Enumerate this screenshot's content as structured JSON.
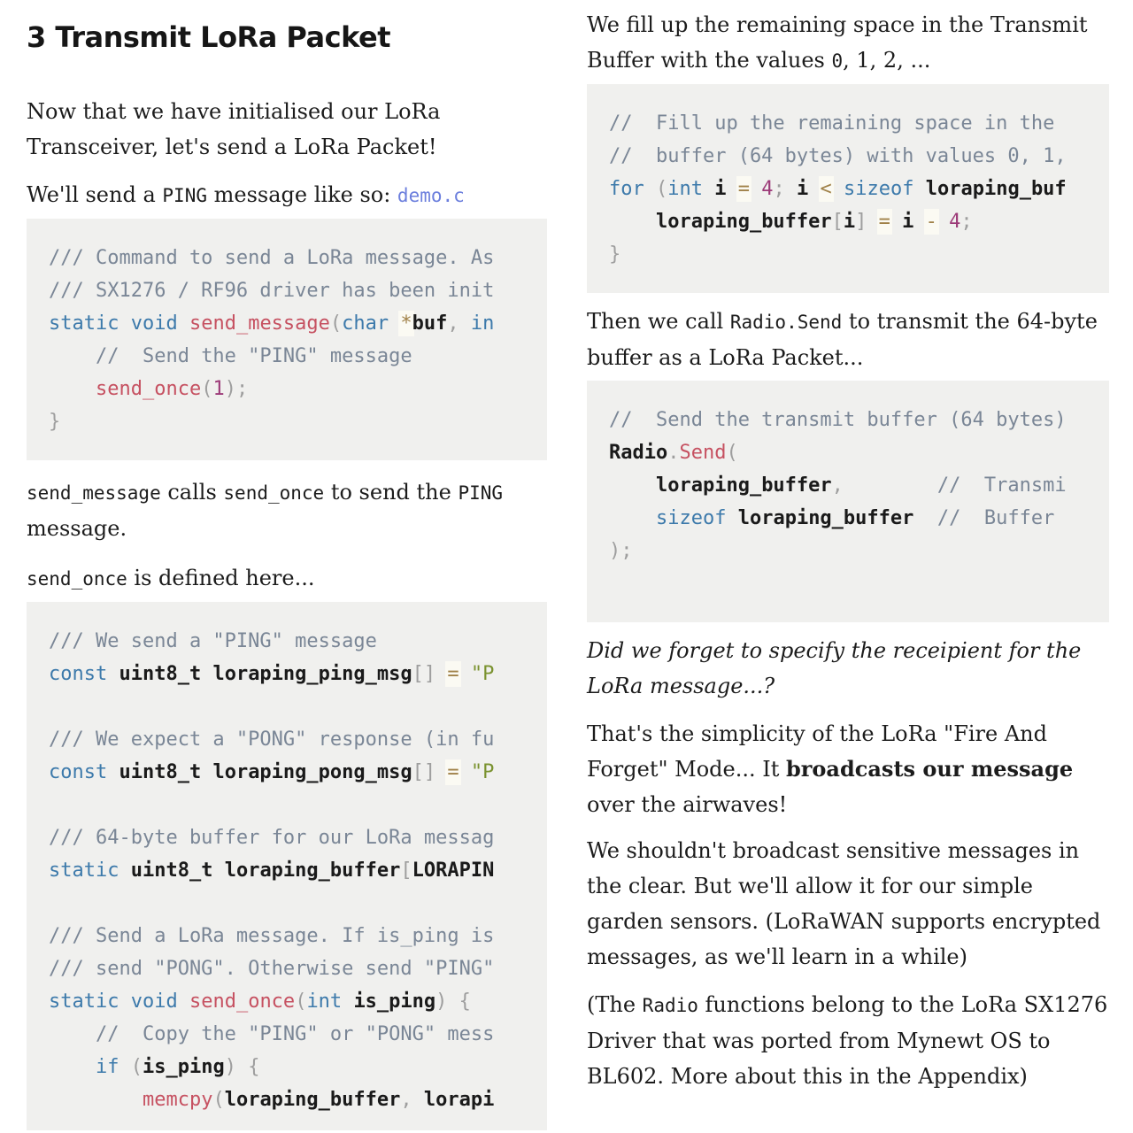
{
  "colors": {
    "text": "#1c1c1c",
    "code-bg": "#f0f0ee",
    "comment": "#7a8696",
    "keyword": "#3d7aab",
    "function": "#c65161",
    "string": "#7a922f",
    "operator": "#a08148",
    "operator-bg": "#fbfaf3",
    "number": "#9c3a78",
    "punct": "#9e9e9e",
    "ident": "#1a1a1a",
    "link": "#6c7fdd"
  },
  "left": {
    "heading": "3 Transmit LoRa Packet",
    "para_intro": [
      {
        "t": "Now that we have initialised our LoRa Transceiver, let's send a LoRa Packet!"
      }
    ],
    "para_send": [
      {
        "t": "We'll send a "
      },
      {
        "t": "PING",
        "s": "code"
      },
      {
        "t": " message like so: "
      },
      {
        "t": "demo.c",
        "s": "link"
      }
    ],
    "code_send_message": {
      "lines": [
        [
          [
            "cmt",
            "/// Command to send a LoRa message. As"
          ]
        ],
        [
          [
            "cmt",
            "/// SX1276 / RF96 driver has been init"
          ]
        ],
        [
          [
            "kw",
            "static"
          ],
          [
            "txt",
            " "
          ],
          [
            "kw",
            "void"
          ],
          [
            "txt",
            " "
          ],
          [
            "fn",
            "send_message"
          ],
          [
            "pun",
            "("
          ],
          [
            "kw",
            "char"
          ],
          [
            "txt",
            " "
          ],
          [
            "op",
            "*"
          ],
          [
            "id",
            "buf"
          ],
          [
            "pun",
            ","
          ],
          [
            "txt",
            " "
          ],
          [
            "kw",
            "in"
          ]
        ],
        [
          [
            "txt",
            "    "
          ],
          [
            "cmt",
            "//  Send the \"PING\" message"
          ]
        ],
        [
          [
            "txt",
            "    "
          ],
          [
            "fn",
            "send_once"
          ],
          [
            "pun",
            "("
          ],
          [
            "num",
            "1"
          ],
          [
            "pun",
            ");"
          ]
        ],
        [
          [
            "pun",
            "}"
          ]
        ]
      ]
    },
    "para_calls": [
      {
        "t": "send_message",
        "s": "code"
      },
      {
        "t": " calls "
      },
      {
        "t": "send_once",
        "s": "code"
      },
      {
        "t": " to send the "
      },
      {
        "t": "PING",
        "s": "code"
      },
      {
        "t": " message."
      }
    ],
    "para_defined": [
      {
        "t": "send_once",
        "s": "code"
      },
      {
        "t": " is defined here..."
      }
    ],
    "code_send_once": {
      "lines": [
        [
          [
            "cmt",
            "/// We send a \"PING\" message"
          ]
        ],
        [
          [
            "kw",
            "const"
          ],
          [
            "txt",
            " "
          ],
          [
            "id",
            "uint8_t"
          ],
          [
            "txt",
            " "
          ],
          [
            "id",
            "loraping_ping_msg"
          ],
          [
            "pun",
            "[]"
          ],
          [
            "txt",
            " "
          ],
          [
            "op",
            "="
          ],
          [
            "txt",
            " "
          ],
          [
            "str",
            "\"P"
          ]
        ],
        [],
        [
          [
            "cmt",
            "/// We expect a \"PONG\" response (in fu"
          ]
        ],
        [
          [
            "kw",
            "const"
          ],
          [
            "txt",
            " "
          ],
          [
            "id",
            "uint8_t"
          ],
          [
            "txt",
            " "
          ],
          [
            "id",
            "loraping_pong_msg"
          ],
          [
            "pun",
            "[]"
          ],
          [
            "txt",
            " "
          ],
          [
            "op",
            "="
          ],
          [
            "txt",
            " "
          ],
          [
            "str",
            "\"P"
          ]
        ],
        [],
        [
          [
            "cmt",
            "/// 64-byte buffer for our LoRa messag"
          ]
        ],
        [
          [
            "kw",
            "static"
          ],
          [
            "txt",
            " "
          ],
          [
            "id",
            "uint8_t"
          ],
          [
            "txt",
            " "
          ],
          [
            "id",
            "loraping_buffer"
          ],
          [
            "pun",
            "["
          ],
          [
            "id",
            "LORAPIN"
          ]
        ],
        [],
        [
          [
            "cmt",
            "/// Send a LoRa message. If is_ping is"
          ]
        ],
        [
          [
            "cmt",
            "/// send \"PONG\". Otherwise send \"PING\""
          ]
        ],
        [
          [
            "kw",
            "static"
          ],
          [
            "txt",
            " "
          ],
          [
            "kw",
            "void"
          ],
          [
            "txt",
            " "
          ],
          [
            "fn",
            "send_once"
          ],
          [
            "pun",
            "("
          ],
          [
            "kw",
            "int"
          ],
          [
            "txt",
            " "
          ],
          [
            "id",
            "is_ping"
          ],
          [
            "pun",
            ")"
          ],
          [
            "txt",
            " "
          ],
          [
            "pun",
            "{"
          ]
        ],
        [
          [
            "txt",
            "    "
          ],
          [
            "cmt",
            "//  Copy the \"PING\" or \"PONG\" mess"
          ]
        ],
        [
          [
            "txt",
            "    "
          ],
          [
            "kw",
            "if"
          ],
          [
            "txt",
            " "
          ],
          [
            "pun",
            "("
          ],
          [
            "id",
            "is_ping"
          ],
          [
            "pun",
            ")"
          ],
          [
            "txt",
            " "
          ],
          [
            "pun",
            "{"
          ]
        ],
        [
          [
            "txt",
            "        "
          ],
          [
            "fn",
            "memcpy"
          ],
          [
            "pun",
            "("
          ],
          [
            "id",
            "loraping_buffer"
          ],
          [
            "pun",
            ","
          ],
          [
            "txt",
            " "
          ],
          [
            "id",
            "lorapi"
          ]
        ]
      ]
    }
  },
  "right": {
    "para_fill": [
      {
        "t": "We fill up the remaining space in the Transmit Buffer with the values "
      },
      {
        "t": "0",
        "s": "code"
      },
      {
        "t": ", 1, 2, ..."
      }
    ],
    "code_fill_buffer": {
      "lines": [
        [
          [
            "cmt",
            "//  Fill up the remaining space in the"
          ]
        ],
        [
          [
            "cmt",
            "//  buffer (64 bytes) with values 0, 1,"
          ]
        ],
        [
          [
            "kw",
            "for"
          ],
          [
            "txt",
            " "
          ],
          [
            "pun",
            "("
          ],
          [
            "kw",
            "int"
          ],
          [
            "txt",
            " "
          ],
          [
            "id",
            "i"
          ],
          [
            "txt",
            " "
          ],
          [
            "op",
            "="
          ],
          [
            "txt",
            " "
          ],
          [
            "num",
            "4"
          ],
          [
            "pun",
            ";"
          ],
          [
            "txt",
            " "
          ],
          [
            "id",
            "i"
          ],
          [
            "txt",
            " "
          ],
          [
            "op",
            "<"
          ],
          [
            "txt",
            " "
          ],
          [
            "kw",
            "sizeof"
          ],
          [
            "txt",
            " "
          ],
          [
            "id",
            "loraping_buf"
          ]
        ],
        [
          [
            "txt",
            "    "
          ],
          [
            "id",
            "loraping_buffer"
          ],
          [
            "pun",
            "["
          ],
          [
            "id",
            "i"
          ],
          [
            "pun",
            "]"
          ],
          [
            "txt",
            " "
          ],
          [
            "op",
            "="
          ],
          [
            "txt",
            " "
          ],
          [
            "id",
            "i"
          ],
          [
            "txt",
            " "
          ],
          [
            "op",
            "-"
          ],
          [
            "txt",
            " "
          ],
          [
            "num",
            "4"
          ],
          [
            "pun",
            ";"
          ]
        ],
        [
          [
            "pun",
            "}"
          ]
        ]
      ]
    },
    "para_then": [
      {
        "t": "Then we call "
      },
      {
        "t": "Radio.Send",
        "s": "code"
      },
      {
        "t": " to transmit the 64-byte buffer as a LoRa Packet..."
      }
    ],
    "code_radio_send": {
      "lines": [
        [
          [
            "cmt",
            "//  Send the transmit buffer (64 bytes)"
          ]
        ],
        [
          [
            "id",
            "Radio"
          ],
          [
            "pun",
            "."
          ],
          [
            "fn",
            "Send"
          ],
          [
            "pun",
            "("
          ]
        ],
        [
          [
            "txt",
            "    "
          ],
          [
            "id",
            "loraping_buffer"
          ],
          [
            "pun",
            ","
          ],
          [
            "txt",
            "        "
          ],
          [
            "cmt",
            "//  Transmi"
          ]
        ],
        [
          [
            "txt",
            "    "
          ],
          [
            "kw",
            "sizeof"
          ],
          [
            "txt",
            " "
          ],
          [
            "id",
            "loraping_buffer"
          ],
          [
            "txt",
            "  "
          ],
          [
            "cmt",
            "//  Buffer"
          ]
        ],
        [
          [
            "pun",
            ");"
          ]
        ],
        []
      ]
    },
    "para_forget": [
      {
        "t": "Did we forget to specify the receipient for the LoRa message...?",
        "s": "italic"
      }
    ],
    "para_simplicity": [
      {
        "t": "That's the simplicity of the LoRa \"Fire And Forget\" Mode... It "
      },
      {
        "t": "broadcasts our message",
        "s": "bold"
      },
      {
        "t": " over the airwaves!"
      }
    ],
    "para_broadcast": [
      {
        "t": "We shouldn't broadcast sensitive messages in the clear. But we'll allow it for our simple garden sensors. (LoRaWAN supports encrypted messages, as we'll learn in a while)"
      }
    ],
    "para_radio": [
      {
        "t": "(The "
      },
      {
        "t": "Radio",
        "s": "code"
      },
      {
        "t": " functions belong to the LoRa SX1276 Driver that was ported from Mynewt OS to BL602. More about this in the Appendix)"
      }
    ]
  }
}
